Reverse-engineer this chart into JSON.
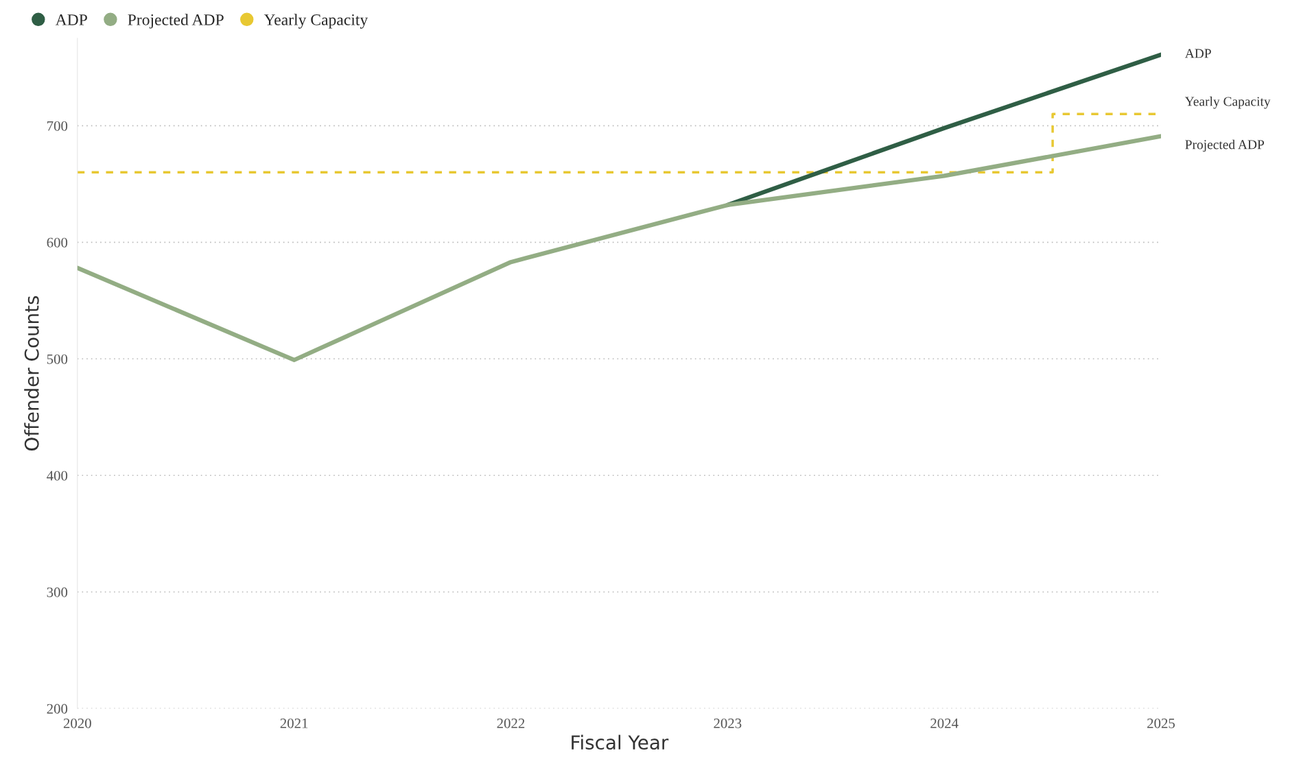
{
  "chart_data": {
    "type": "line",
    "xlabel": "Fiscal Year",
    "ylabel": "Offender Counts",
    "x": [
      2020,
      2021,
      2022,
      2023,
      2024,
      2025
    ],
    "series": [
      {
        "name": "ADP",
        "color": "#2f5e45",
        "values": [
          null,
          null,
          null,
          632,
          698,
          761
        ]
      },
      {
        "name": "Projected ADP",
        "color": "#93ad84",
        "values": [
          578,
          499,
          583,
          632,
          657,
          691
        ]
      },
      {
        "name": "Yearly Capacity",
        "type": "step",
        "color": "#e8c832",
        "line_style": "dashed",
        "values": [
          660,
          660,
          660,
          660,
          660,
          710
        ]
      }
    ],
    "xlim": [
      2020,
      2025
    ],
    "xticks": [
      2020,
      2021,
      2022,
      2023,
      2024,
      2025
    ],
    "ylim": [
      200,
      775
    ],
    "yticks": [
      200,
      300,
      400,
      500,
      600,
      700
    ],
    "grid": "y",
    "legend": "top left",
    "line_style": "solid",
    "marker": "none"
  }
}
